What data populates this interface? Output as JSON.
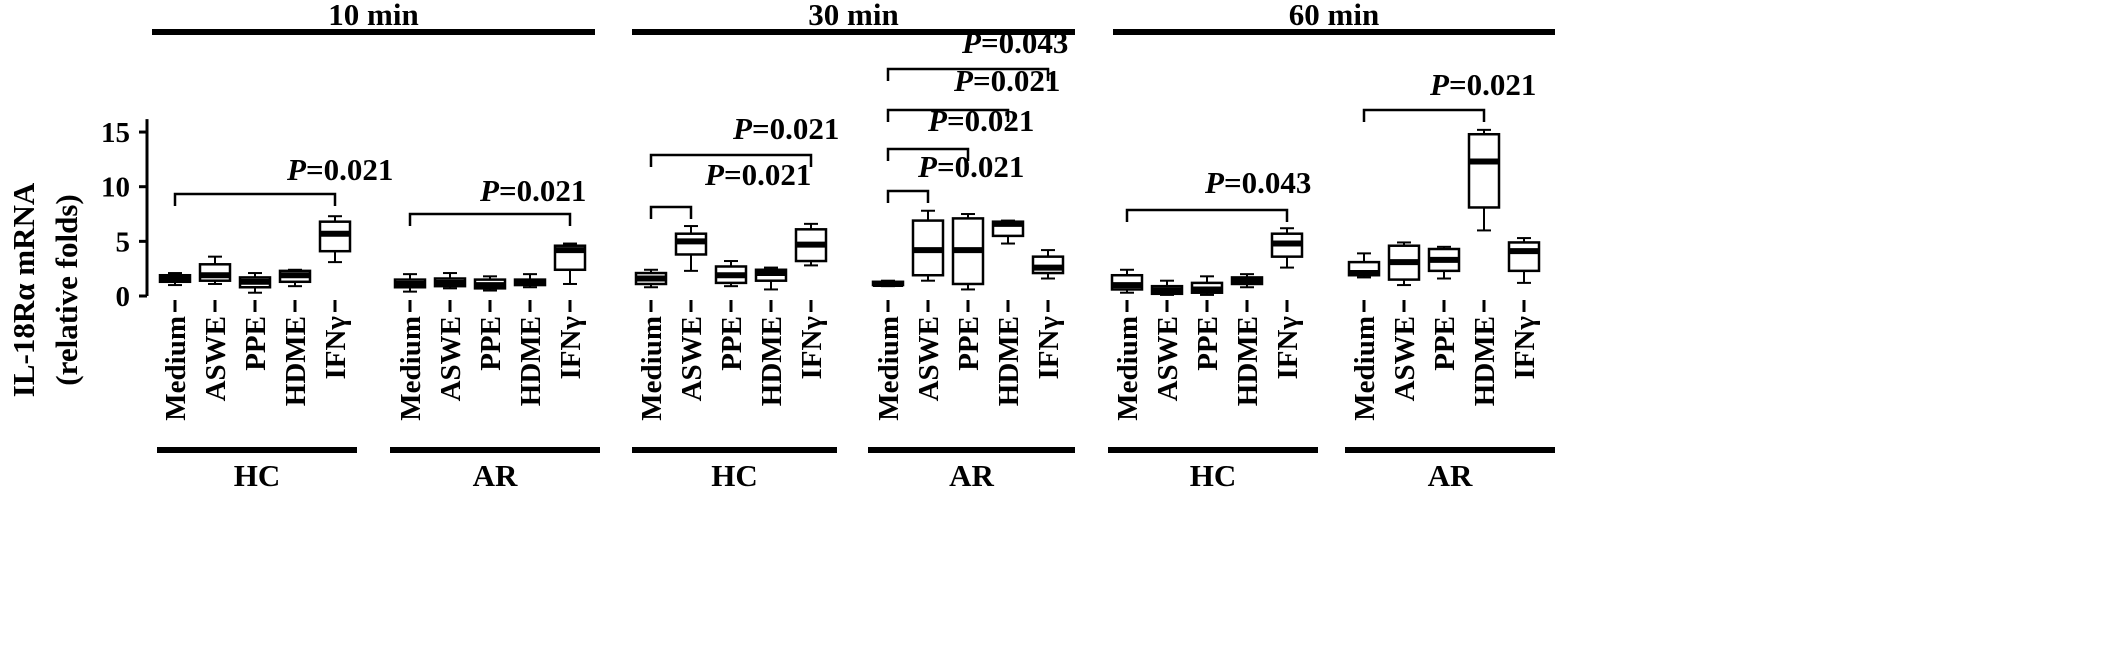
{
  "chart_data": {
    "type": "box",
    "ylabel": "IL-18Rα mRNA",
    "ylabel2": "(relative folds)",
    "ylim": [
      0,
      16
    ],
    "yticks": [
      0,
      5,
      10,
      15
    ],
    "categories": [
      "Medium",
      "ASWE",
      "PPE",
      "HDME",
      "IFNγ"
    ],
    "time_points": [
      {
        "label": "10 min",
        "groups": [
          {
            "label": "HC",
            "boxes": [
              {
                "category": "Medium",
                "min": 1.0,
                "q1": 1.3,
                "median": 1.6,
                "q3": 1.9,
                "max": 2.1
              },
              {
                "category": "ASWE",
                "min": 1.1,
                "q1": 1.4,
                "median": 1.9,
                "q3": 2.9,
                "max": 3.6
              },
              {
                "category": "PPE",
                "min": 0.3,
                "q1": 0.8,
                "median": 1.3,
                "q3": 1.7,
                "max": 2.1
              },
              {
                "category": "HDME",
                "min": 0.9,
                "q1": 1.3,
                "median": 1.9,
                "q3": 2.3,
                "max": 2.4
              },
              {
                "category": "IFNγ",
                "min": 3.1,
                "q1": 4.1,
                "median": 5.7,
                "q3": 6.8,
                "max": 7.3
              }
            ],
            "brackets": [
              {
                "from": "Medium",
                "to": "IFNγ",
                "p": "=0.021"
              }
            ]
          },
          {
            "label": "AR",
            "boxes": [
              {
                "category": "Medium",
                "min": 0.4,
                "q1": 0.8,
                "median": 1.1,
                "q3": 1.5,
                "max": 2.0
              },
              {
                "category": "ASWE",
                "min": 0.7,
                "q1": 0.9,
                "median": 1.2,
                "q3": 1.6,
                "max": 2.1
              },
              {
                "category": "PPE",
                "min": 0.5,
                "q1": 0.7,
                "median": 1.0,
                "q3": 1.5,
                "max": 1.8
              },
              {
                "category": "HDME",
                "min": 0.8,
                "q1": 1.0,
                "median": 1.2,
                "q3": 1.5,
                "max": 2.0
              },
              {
                "category": "IFNγ",
                "min": 1.1,
                "q1": 2.4,
                "median": 4.2,
                "q3": 4.6,
                "max": 4.8
              }
            ],
            "brackets": [
              {
                "from": "Medium",
                "to": "IFNγ",
                "p": "=0.021"
              }
            ]
          }
        ]
      },
      {
        "label": "30 min",
        "groups": [
          {
            "label": "HC",
            "boxes": [
              {
                "category": "Medium",
                "min": 0.8,
                "q1": 1.1,
                "median": 1.6,
                "q3": 2.1,
                "max": 2.4
              },
              {
                "category": "ASWE",
                "min": 2.3,
                "q1": 3.8,
                "median": 5.0,
                "q3": 5.7,
                "max": 6.4
              },
              {
                "category": "PPE",
                "min": 0.9,
                "q1": 1.2,
                "median": 1.9,
                "q3": 2.7,
                "max": 3.2
              },
              {
                "category": "HDME",
                "min": 0.6,
                "q1": 1.4,
                "median": 2.1,
                "q3": 2.4,
                "max": 2.6
              },
              {
                "category": "IFNγ",
                "min": 2.8,
                "q1": 3.2,
                "median": 4.7,
                "q3": 6.1,
                "max": 6.6
              }
            ],
            "brackets": [
              {
                "from": "Medium",
                "to": "ASWE",
                "p": "=0.021"
              },
              {
                "from": "Medium",
                "to": "IFNγ",
                "p": "=0.021"
              }
            ]
          },
          {
            "label": "AR",
            "boxes": [
              {
                "category": "Medium",
                "min": 0.9,
                "q1": 1.0,
                "median": 1.1,
                "q3": 1.3,
                "max": 1.4
              },
              {
                "category": "ASWE",
                "min": 1.4,
                "q1": 1.9,
                "median": 4.2,
                "q3": 6.9,
                "max": 7.8
              },
              {
                "category": "PPE",
                "min": 0.6,
                "q1": 1.1,
                "median": 4.2,
                "q3": 7.1,
                "max": 7.5
              },
              {
                "category": "HDME",
                "min": 4.8,
                "q1": 5.5,
                "median": 6.6,
                "q3": 6.8,
                "max": 6.9
              },
              {
                "category": "IFNγ",
                "min": 1.6,
                "q1": 2.1,
                "median": 2.6,
                "q3": 3.6,
                "max": 4.2
              }
            ],
            "brackets": [
              {
                "from": "Medium",
                "to": "ASWE",
                "p": "=0.021"
              },
              {
                "from": "Medium",
                "to": "PPE",
                "p": "=0.021"
              },
              {
                "from": "Medium",
                "to": "HDME",
                "p": "=0.021"
              },
              {
                "from": "Medium",
                "to": "IFNγ",
                "p": "=0.043"
              }
            ]
          }
        ]
      },
      {
        "label": "60 min",
        "groups": [
          {
            "label": "HC",
            "boxes": [
              {
                "category": "Medium",
                "min": 0.3,
                "q1": 0.6,
                "median": 1.0,
                "q3": 1.9,
                "max": 2.4
              },
              {
                "category": "ASWE",
                "min": 0.1,
                "q1": 0.2,
                "median": 0.5,
                "q3": 0.9,
                "max": 1.4
              },
              {
                "category": "PPE",
                "min": 0.1,
                "q1": 0.3,
                "median": 0.6,
                "q3": 1.2,
                "max": 1.8
              },
              {
                "category": "HDME",
                "min": 0.8,
                "q1": 1.1,
                "median": 1.4,
                "q3": 1.7,
                "max": 2.0
              },
              {
                "category": "IFNγ",
                "min": 2.6,
                "q1": 3.6,
                "median": 4.8,
                "q3": 5.7,
                "max": 6.2
              }
            ],
            "brackets": [
              {
                "from": "Medium",
                "to": "IFNγ",
                "p": "=0.043"
              }
            ]
          },
          {
            "label": "AR",
            "boxes": [
              {
                "category": "Medium",
                "min": 1.7,
                "q1": 1.9,
                "median": 2.1,
                "q3": 3.1,
                "max": 3.9
              },
              {
                "category": "ASWE",
                "min": 1.0,
                "q1": 1.5,
                "median": 3.1,
                "q3": 4.6,
                "max": 4.9
              },
              {
                "category": "PPE",
                "min": 1.6,
                "q1": 2.3,
                "median": 3.3,
                "q3": 4.3,
                "max": 4.5
              },
              {
                "category": "HDME",
                "min": 6.0,
                "q1": 8.1,
                "median": 12.3,
                "q3": 14.8,
                "max": 15.2
              },
              {
                "category": "IFNγ",
                "min": 1.2,
                "q1": 2.3,
                "median": 4.1,
                "q3": 4.9,
                "max": 5.3
              }
            ],
            "brackets": [
              {
                "from": "Medium",
                "to": "HDME",
                "p": "=0.021"
              }
            ]
          }
        ]
      }
    ],
    "p_letter": "P",
    "grid": false
  }
}
